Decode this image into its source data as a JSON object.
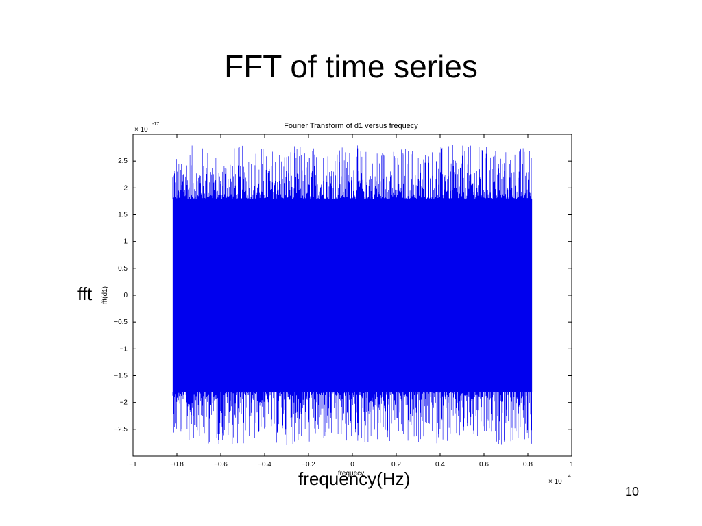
{
  "slide": {
    "title": "FFT of time series",
    "y_label_overlay": "fft",
    "x_label_overlay": "frequency(Hz)",
    "page_number": "10"
  },
  "chart_data": {
    "type": "line",
    "title": "Fourier Transform of d1 versus frequecy",
    "xlabel": "frequecy",
    "ylabel": "fft(d1)",
    "xlim": [
      -10000,
      10000
    ],
    "ylim": [
      -3e-17,
      3e-17
    ],
    "x_exponent_label": "× 10",
    "x_exponent": "4",
    "y_exponent_label": "× 10",
    "y_exponent": "-17",
    "x_tick_labels": [
      "−1",
      "−0.8",
      "−0.6",
      "−0.4",
      "−0.2",
      "0",
      "0.2",
      "0.4",
      "0.6",
      "0.8",
      "1"
    ],
    "x_tick_values": [
      -10000,
      -8000,
      -6000,
      -4000,
      -2000,
      0,
      2000,
      4000,
      6000,
      8000,
      10000
    ],
    "y_tick_labels": [
      "2.5",
      "2",
      "1.5",
      "1",
      "0.5",
      "0",
      "−0.5",
      "−1",
      "−1.5",
      "−2",
      "−2.5"
    ],
    "y_tick_values": [
      2.5e-17,
      2e-17,
      1.5e-17,
      1e-17,
      5e-18,
      0,
      -5e-18,
      -1e-17,
      -1.5e-17,
      -2e-17,
      -2.5e-17
    ],
    "series": [
      {
        "x_range": [
          -8192,
          8192
        ],
        "dense_band": [
          -1.8e-17,
          1.8e-17
        ],
        "peak_range": [
          -2.8e-17,
          2.8e-17
        ],
        "color": "#0000ee"
      }
    ],
    "grid": false
  }
}
